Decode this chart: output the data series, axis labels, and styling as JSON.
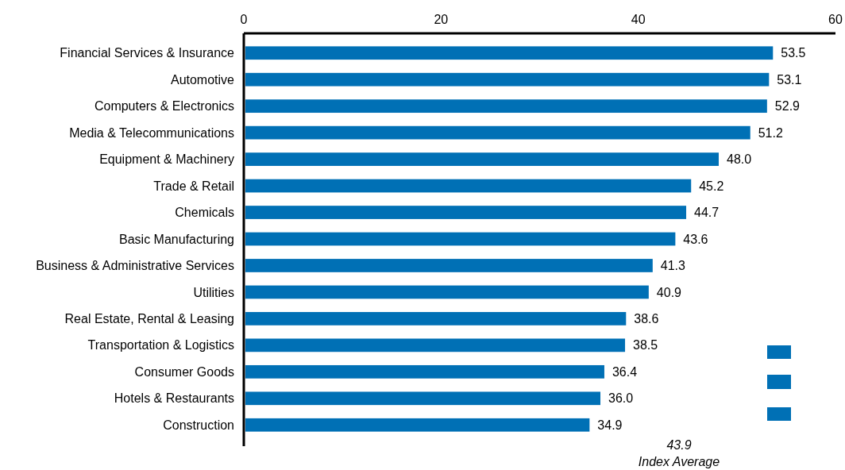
{
  "chart_data": {
    "type": "bar",
    "orientation": "horizontal",
    "categories": [
      "Financial Services & Insurance",
      "Automotive",
      "Computers & Electronics",
      "Media & Telecommunications",
      "Equipment & Machinery",
      "Trade & Retail",
      "Chemicals",
      "Basic Manufacturing",
      "Business & Administrative Services",
      "Utilities",
      "Real Estate, Rental & Leasing",
      "Transportation & Logistics",
      "Consumer Goods",
      "Hotels & Restaurants",
      "Construction"
    ],
    "values": [
      53.5,
      53.1,
      52.9,
      51.2,
      48.0,
      45.2,
      44.7,
      43.6,
      41.3,
      40.9,
      38.6,
      38.5,
      36.4,
      36.0,
      34.9
    ],
    "value_labels": [
      "53.5",
      "53.1",
      "52.9",
      "51.2",
      "48.0",
      "45.2",
      "44.7",
      "43.6",
      "41.3",
      "40.9",
      "38.6",
      "38.5",
      "36.4",
      "36.0",
      "34.9"
    ],
    "color": "#0070b5",
    "xlim": [
      0,
      60
    ],
    "xticks": [
      0,
      20,
      40,
      60
    ],
    "grid": false,
    "annotations": [
      "43.9",
      "Index Average"
    ]
  }
}
